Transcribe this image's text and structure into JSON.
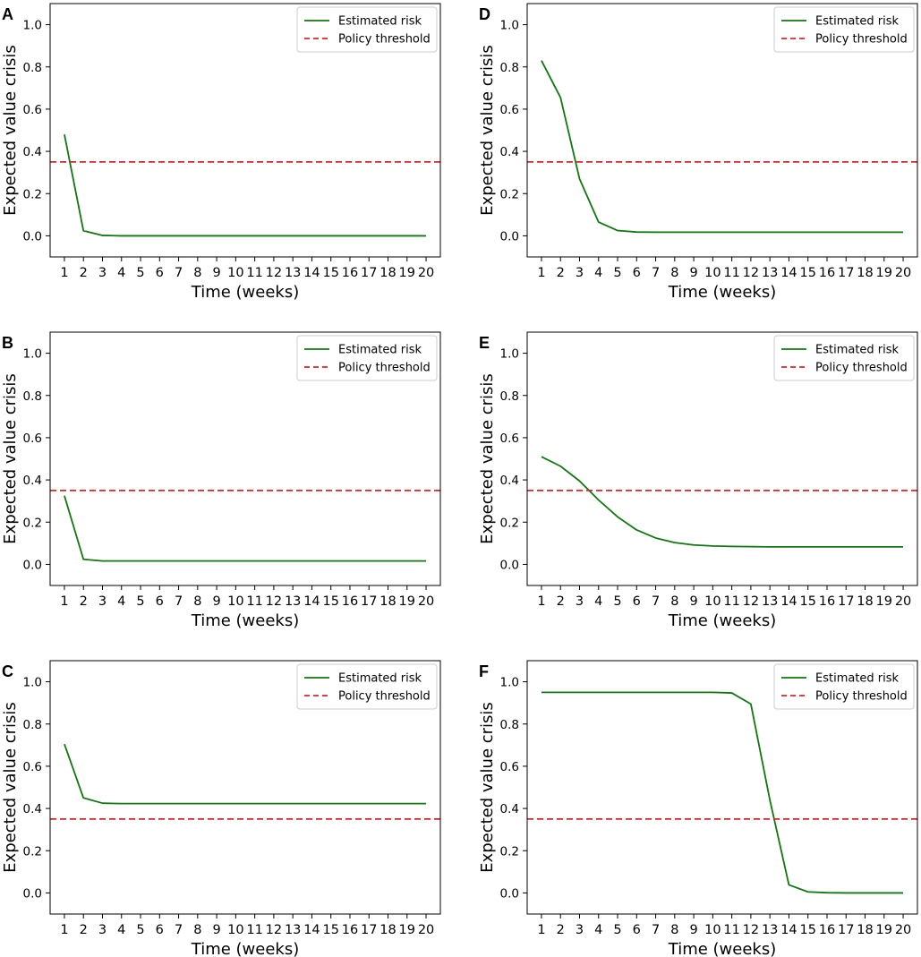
{
  "chart_data": [
    {
      "panel": "A",
      "type": "line",
      "title": "",
      "xlabel": "Time (weeks)",
      "ylabel": "Expected value crisis",
      "x": [
        1,
        2,
        3,
        4,
        5,
        6,
        7,
        8,
        9,
        10,
        11,
        12,
        13,
        14,
        15,
        16,
        17,
        18,
        19,
        20
      ],
      "categories": [
        "1",
        "2",
        "3",
        "4",
        "5",
        "6",
        "7",
        "8",
        "9",
        "10",
        "11",
        "12",
        "13",
        "14",
        "15",
        "16",
        "17",
        "18",
        "19",
        "20"
      ],
      "yticks": [
        "0.0",
        "0.2",
        "0.4",
        "0.6",
        "0.8",
        "1.0"
      ],
      "ylim": [
        -0.1,
        1.1
      ],
      "xlim": [
        0.25,
        20.75
      ],
      "series": [
        {
          "name": "Estimated risk",
          "style": "solid",
          "color": "#117711",
          "values": [
            0.48,
            0.024,
            0.002,
            0.0,
            0.0,
            0.0,
            0.0,
            0.0,
            0.0,
            0.0,
            0.0,
            0.0,
            0.0,
            0.0,
            0.0,
            0.0,
            0.0,
            0.0,
            0.0,
            0.0
          ]
        },
        {
          "name": "Policy threshold",
          "style": "dashed",
          "color": "#d62728",
          "hline": 0.35
        }
      ],
      "legend": "top-right"
    },
    {
      "panel": "B",
      "type": "line",
      "title": "",
      "xlabel": "Time (weeks)",
      "ylabel": "Expected value crisis",
      "x": [
        1,
        2,
        3,
        4,
        5,
        6,
        7,
        8,
        9,
        10,
        11,
        12,
        13,
        14,
        15,
        16,
        17,
        18,
        19,
        20
      ],
      "categories": [
        "1",
        "2",
        "3",
        "4",
        "5",
        "6",
        "7",
        "8",
        "9",
        "10",
        "11",
        "12",
        "13",
        "14",
        "15",
        "16",
        "17",
        "18",
        "19",
        "20"
      ],
      "yticks": [
        "0.0",
        "0.2",
        "0.4",
        "0.6",
        "0.8",
        "1.0"
      ],
      "ylim": [
        -0.1,
        1.1
      ],
      "xlim": [
        0.25,
        20.75
      ],
      "series": [
        {
          "name": "Estimated risk",
          "style": "solid",
          "color": "#117711",
          "values": [
            0.325,
            0.024,
            0.016,
            0.016,
            0.016,
            0.016,
            0.016,
            0.016,
            0.016,
            0.016,
            0.016,
            0.016,
            0.016,
            0.016,
            0.016,
            0.016,
            0.016,
            0.016,
            0.016,
            0.016
          ]
        },
        {
          "name": "Policy threshold",
          "style": "dashed",
          "color": "#d62728",
          "hline": 0.35
        }
      ],
      "legend": "top-right"
    },
    {
      "panel": "C",
      "type": "line",
      "title": "",
      "xlabel": "Time (weeks)",
      "ylabel": "Expected value crisis",
      "x": [
        1,
        2,
        3,
        4,
        5,
        6,
        7,
        8,
        9,
        10,
        11,
        12,
        13,
        14,
        15,
        16,
        17,
        18,
        19,
        20
      ],
      "categories": [
        "1",
        "2",
        "3",
        "4",
        "5",
        "6",
        "7",
        "8",
        "9",
        "10",
        "11",
        "12",
        "13",
        "14",
        "15",
        "16",
        "17",
        "18",
        "19",
        "20"
      ],
      "yticks": [
        "0.0",
        "0.2",
        "0.4",
        "0.6",
        "0.8",
        "1.0"
      ],
      "ylim": [
        -0.1,
        1.1
      ],
      "xlim": [
        0.25,
        20.75
      ],
      "series": [
        {
          "name": "Estimated risk",
          "style": "solid",
          "color": "#117711",
          "values": [
            0.705,
            0.45,
            0.425,
            0.423,
            0.423,
            0.423,
            0.423,
            0.423,
            0.423,
            0.423,
            0.423,
            0.423,
            0.423,
            0.423,
            0.423,
            0.423,
            0.423,
            0.423,
            0.423,
            0.423
          ]
        },
        {
          "name": "Policy threshold",
          "style": "dashed",
          "color": "#d62728",
          "hline": 0.35
        }
      ],
      "legend": "top-right"
    },
    {
      "panel": "D",
      "type": "line",
      "title": "",
      "xlabel": "Time (weeks)",
      "ylabel": "Expected value crisis",
      "x": [
        1,
        2,
        3,
        4,
        5,
        6,
        7,
        8,
        9,
        10,
        11,
        12,
        13,
        14,
        15,
        16,
        17,
        18,
        19,
        20
      ],
      "categories": [
        "1",
        "2",
        "3",
        "4",
        "5",
        "6",
        "7",
        "8",
        "9",
        "10",
        "11",
        "12",
        "13",
        "14",
        "15",
        "16",
        "17",
        "18",
        "19",
        "20"
      ],
      "yticks": [
        "0.0",
        "0.2",
        "0.4",
        "0.6",
        "0.8",
        "1.0"
      ],
      "ylim": [
        -0.1,
        1.1
      ],
      "xlim": [
        0.25,
        20.75
      ],
      "series": [
        {
          "name": "Estimated risk",
          "style": "solid",
          "color": "#117711",
          "values": [
            0.83,
            0.655,
            0.27,
            0.065,
            0.025,
            0.018,
            0.017,
            0.017,
            0.017,
            0.017,
            0.017,
            0.017,
            0.017,
            0.017,
            0.017,
            0.017,
            0.017,
            0.017,
            0.017,
            0.017
          ]
        },
        {
          "name": "Policy threshold",
          "style": "dashed",
          "color": "#d62728",
          "hline": 0.35
        }
      ],
      "legend": "top-right"
    },
    {
      "panel": "E",
      "type": "line",
      "title": "",
      "xlabel": "Time (weeks)",
      "ylabel": "Expected value crisis",
      "x": [
        1,
        2,
        3,
        4,
        5,
        6,
        7,
        8,
        9,
        10,
        11,
        12,
        13,
        14,
        15,
        16,
        17,
        18,
        19,
        20
      ],
      "categories": [
        "1",
        "2",
        "3",
        "4",
        "5",
        "6",
        "7",
        "8",
        "9",
        "10",
        "11",
        "12",
        "13",
        "14",
        "15",
        "16",
        "17",
        "18",
        "19",
        "20"
      ],
      "yticks": [
        "0.0",
        "0.2",
        "0.4",
        "0.6",
        "0.8",
        "1.0"
      ],
      "ylim": [
        -0.1,
        1.1
      ],
      "xlim": [
        0.25,
        20.75
      ],
      "series": [
        {
          "name": "Estimated risk",
          "style": "solid",
          "color": "#117711",
          "values": [
            0.51,
            0.465,
            0.395,
            0.305,
            0.225,
            0.163,
            0.125,
            0.103,
            0.092,
            0.087,
            0.085,
            0.084,
            0.083,
            0.083,
            0.083,
            0.083,
            0.083,
            0.083,
            0.083,
            0.083
          ]
        },
        {
          "name": "Policy threshold",
          "style": "dashed",
          "color": "#d62728",
          "hline": 0.35
        }
      ],
      "legend": "top-right"
    },
    {
      "panel": "F",
      "type": "line",
      "title": "",
      "xlabel": "Time (weeks)",
      "ylabel": "Expected value crisis",
      "x": [
        1,
        2,
        3,
        4,
        5,
        6,
        7,
        8,
        9,
        10,
        11,
        12,
        13,
        14,
        15,
        16,
        17,
        18,
        19,
        20
      ],
      "categories": [
        "1",
        "2",
        "3",
        "4",
        "5",
        "6",
        "7",
        "8",
        "9",
        "10",
        "11",
        "12",
        "13",
        "14",
        "15",
        "16",
        "17",
        "18",
        "19",
        "20"
      ],
      "yticks": [
        "0.0",
        "0.2",
        "0.4",
        "0.6",
        "0.8",
        "1.0"
      ],
      "ylim": [
        -0.1,
        1.1
      ],
      "xlim": [
        0.25,
        20.75
      ],
      "series": [
        {
          "name": "Estimated risk",
          "style": "solid",
          "color": "#117711",
          "values": [
            0.95,
            0.95,
            0.95,
            0.95,
            0.95,
            0.95,
            0.95,
            0.95,
            0.95,
            0.95,
            0.947,
            0.895,
            0.44,
            0.038,
            0.005,
            0.001,
            0.0,
            0.0,
            0.0,
            0.0
          ]
        },
        {
          "name": "Policy threshold",
          "style": "dashed",
          "color": "#d62728",
          "hline": 0.35
        }
      ],
      "legend": "top-right"
    }
  ]
}
